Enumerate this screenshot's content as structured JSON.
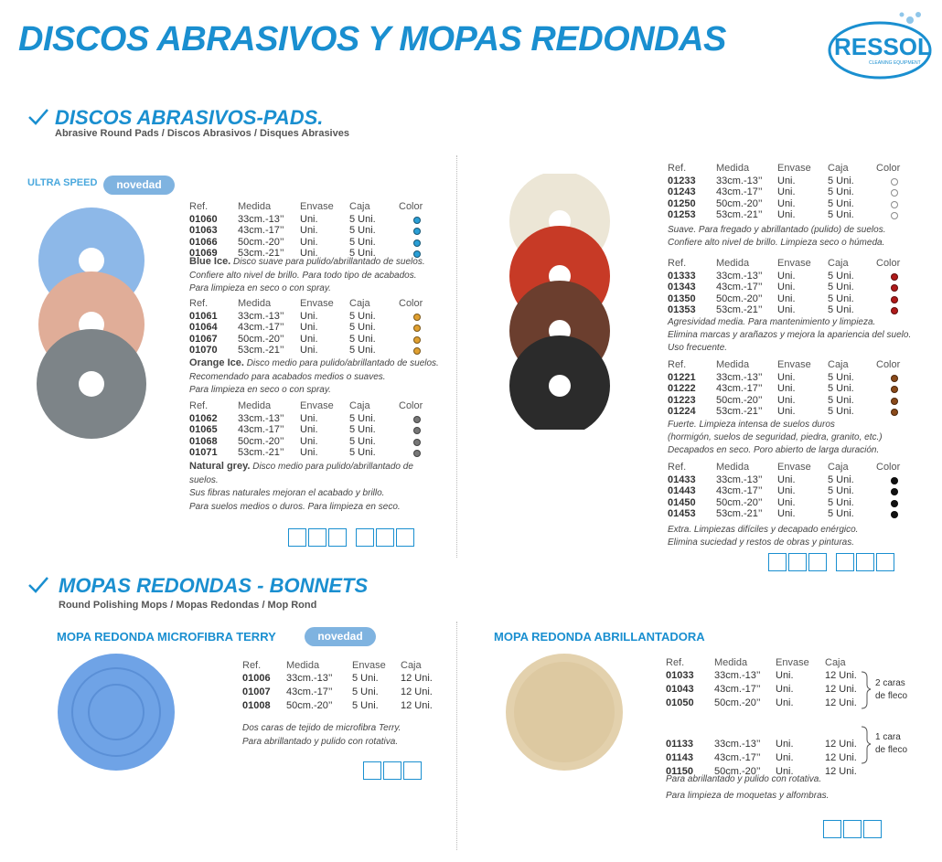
{
  "header": {
    "title": "DISCOS ABRASIVOS Y MOPAS REDONDAS",
    "logo": "RESSOL",
    "logo_sub": "CLEANING EQUIPMENT"
  },
  "pads": {
    "title": "DISCOS ABRASIVOS-PADS.",
    "subtitle": "Abrasive Round Pads / Discos Abrasivos / Disques Abrasives",
    "label": "ULTRA SPEED",
    "badge": "novedad",
    "left_groups": [
      {
        "columns": [
          "Ref.",
          "Medida",
          "Envase",
          "Caja",
          "Color"
        ],
        "dot": "#2a9fd6",
        "rows": [
          [
            "01060",
            "33cm.-13’’",
            "Uni.",
            "5 Uni."
          ],
          [
            "01063",
            "43cm.-17’’",
            "Uni.",
            "5 Uni."
          ],
          [
            "01066",
            "50cm.-20’’",
            "Uni.",
            "5 Uni."
          ],
          [
            "01069",
            "53cm.-21’’",
            "Uni.",
            "5 Uni."
          ]
        ],
        "name": "Blue Ice.",
        "desc": [
          "Disco suave para pulido/abrillantado de suelos.",
          "Confiere alto nivel de brillo. Para todo tipo de acabados.",
          "Para limpieza en seco o con spray."
        ]
      },
      {
        "columns": [
          "Ref.",
          "Medida",
          "Envase",
          "Caja",
          "Color"
        ],
        "dot": "#e0a030",
        "rows": [
          [
            "01061",
            "33cm.-13’’",
            "Uni.",
            "5 Uni."
          ],
          [
            "01064",
            "43cm.-17’’",
            "Uni.",
            "5 Uni."
          ],
          [
            "01067",
            "50cm.-20’’",
            "Uni.",
            "5 Uni."
          ],
          [
            "01070",
            "53cm.-21’’",
            "Uni.",
            "5 Uni."
          ]
        ],
        "name": "Orange Ice.",
        "desc": [
          "Disco medio para pulido/abrillantado de suelos.",
          "Recomendado para acabados medios o suaves.",
          "Para limpieza en seco o con spray."
        ]
      },
      {
        "columns": [
          "Ref.",
          "Medida",
          "Envase",
          "Caja",
          "Color"
        ],
        "dot": "#777777",
        "rows": [
          [
            "01062",
            "33cm.-13’’",
            "Uni.",
            "5 Uni."
          ],
          [
            "01065",
            "43cm.-17’’",
            "Uni.",
            "5 Uni."
          ],
          [
            "01068",
            "50cm.-20’’",
            "Uni.",
            "5 Uni."
          ],
          [
            "01071",
            "53cm.-21’’",
            "Uni.",
            "5 Uni."
          ]
        ],
        "name": "Natural grey.",
        "desc": [
          "Disco medio para pulido/abrillantado de",
          "suelos.",
          "Sus fibras naturales mejoran el acabado y brillo.",
          "Para suelos medios o duros. Para limpieza en seco."
        ]
      }
    ],
    "right_groups": [
      {
        "columns": [
          "Ref.",
          "Medida",
          "Envase",
          "Caja",
          "Color"
        ],
        "dot": "#ffffff",
        "rows": [
          [
            "01233",
            "33cm.-13’’",
            "Uni.",
            "5 Uni."
          ],
          [
            "01243",
            "43cm.-17’’",
            "Uni.",
            "5 Uni."
          ],
          [
            "01250",
            "50cm.-20’’",
            "Uni.",
            "5 Uni."
          ],
          [
            "01253",
            "53cm.-21’’",
            "Uni.",
            "5 Uni."
          ]
        ],
        "desc": [
          "Suave. Para fregado y abrillantado (pulido) de suelos.",
          "Confiere alto nivel de brillo. Limpieza seco o húmeda."
        ]
      },
      {
        "columns": [
          "Ref.",
          "Medida",
          "Envase",
          "Caja",
          "Color"
        ],
        "dot": "#b01a1a",
        "rows": [
          [
            "01333",
            "33cm.-13’’",
            "Uni.",
            "5 Uni."
          ],
          [
            "01343",
            "43cm.-17’’",
            "Uni.",
            "5 Uni."
          ],
          [
            "01350",
            "50cm.-20’’",
            "Uni.",
            "5 Uni."
          ],
          [
            "01353",
            "53cm.-21’’",
            "Uni.",
            "5 Uni."
          ]
        ],
        "desc": [
          "Agresividad media. Para mantenimiento y limpieza.",
          "Elimina marcas y arañazos y mejora la apariencia del suelo.",
          "Uso frecuente."
        ]
      },
      {
        "columns": [
          "Ref.",
          "Medida",
          "Envase",
          "Caja",
          "Color"
        ],
        "dot": "#8a4a1a",
        "rows": [
          [
            "01221",
            "33cm.-13’’",
            "Uni.",
            "5 Uni."
          ],
          [
            "01222",
            "43cm.-17’’",
            "Uni.",
            "5 Uni."
          ],
          [
            "01223",
            "50cm.-20’’",
            "Uni.",
            "5 Uni."
          ],
          [
            "01224",
            "53cm.-21’’",
            "Uni.",
            "5 Uni."
          ]
        ],
        "desc": [
          "Fuerte. Limpieza intensa de suelos duros",
          "(hormigón, suelos de seguridad, piedra, granito, etc.)",
          "Decapados en seco. Poro abierto de larga duración."
        ]
      },
      {
        "columns": [
          "Ref.",
          "Medida",
          "Envase",
          "Caja",
          "Color"
        ],
        "dot": "#111111",
        "rows": [
          [
            "01433",
            "33cm.-13’’",
            "Uni.",
            "5 Uni."
          ],
          [
            "01443",
            "43cm.-17’’",
            "Uni.",
            "5 Uni."
          ],
          [
            "01450",
            "50cm.-20’’",
            "Uni.",
            "5 Uni."
          ],
          [
            "01453",
            "53cm.-21’’",
            "Uni.",
            "5 Uni."
          ]
        ],
        "desc": [
          "Extra. Limpiezas difíciles y decapado enérgico.",
          "Elimina suciedad y restos de obras y pinturas."
        ]
      }
    ]
  },
  "mops": {
    "title": "MOPAS REDONDAS - BONNETS",
    "subtitle": "Round Polishing Mops  /  Mopas Redondas  /  Mop Rond",
    "terry": {
      "title": "MOPA REDONDA MICROFIBRA TERRY",
      "badge": "novedad",
      "columns": [
        "Ref.",
        "Medida",
        "Envase",
        "Caja"
      ],
      "rows": [
        [
          "01006",
          "33cm.-13’’",
          "5 Uni.",
          "12 Uni."
        ],
        [
          "01007",
          "43cm.-17’’",
          "5 Uni.",
          "12 Uni."
        ],
        [
          "01008",
          "50cm.-20’’",
          "5 Uni.",
          "12 Uni."
        ]
      ],
      "desc": [
        "Dos caras de tejido de microfibra Terry.",
        "Para abrillantado y pulido con rotativa."
      ]
    },
    "polish": {
      "title": "MOPA REDONDA ABRILLANTADORA",
      "columns": [
        "Ref.",
        "Medida",
        "Envase",
        "Caja"
      ],
      "rows": [
        [
          "01033",
          "33cm.-13’’",
          "Uni.",
          "12 Uni."
        ],
        [
          "01043",
          "43cm.-17’’",
          "Uni.",
          "12 Uni."
        ],
        [
          "01050",
          "50cm.-20’’",
          "Uni.",
          "12 Uni."
        ],
        [
          "01133",
          "33cm.-13’’",
          "Uni.",
          "12 Uni."
        ],
        [
          "01143",
          "43cm.-17’’",
          "Uni.",
          "12 Uni."
        ],
        [
          "01150",
          "50cm.-20’’",
          "Uni.",
          "12 Uni."
        ]
      ],
      "bracket1": [
        "2 caras",
        "de fleco"
      ],
      "bracket2": [
        "1 cara",
        "de fleco"
      ],
      "desc": [
        "Para abrillantado y pulido con rotativa.",
        "Para limpieza de moquetas y alfombras."
      ]
    }
  }
}
